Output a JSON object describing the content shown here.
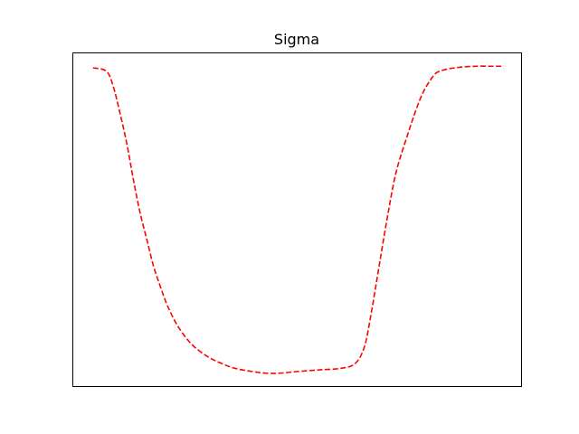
{
  "chart_data": {
    "type": "line",
    "title": "Sigma",
    "xlabel": "",
    "ylabel": "",
    "x_ticks_visible": false,
    "y_ticks_visible": false,
    "grid": false,
    "xlim": [
      0.0,
      1.0
    ],
    "ylim": [
      0.0,
      1.0
    ],
    "series": [
      {
        "color": "#ff0000",
        "line_style": "dashed",
        "x": [
          0.045,
          0.075,
          0.09,
          0.105,
          0.12,
          0.135,
          0.15,
          0.165,
          0.18,
          0.195,
          0.21,
          0.23,
          0.25,
          0.27,
          0.3,
          0.33,
          0.36,
          0.4,
          0.43,
          0.46,
          0.5,
          0.55,
          0.6,
          0.63,
          0.65,
          0.665,
          0.68,
          0.7,
          0.72,
          0.745,
          0.765,
          0.78,
          0.795,
          0.81,
          0.83,
          0.85,
          0.87,
          0.9,
          0.93,
          0.955
        ],
        "y": [
          0.955,
          0.945,
          0.9,
          0.82,
          0.73,
          0.62,
          0.52,
          0.44,
          0.36,
          0.3,
          0.245,
          0.19,
          0.15,
          0.12,
          0.09,
          0.07,
          0.055,
          0.045,
          0.04,
          0.04,
          0.045,
          0.05,
          0.055,
          0.07,
          0.12,
          0.22,
          0.34,
          0.5,
          0.64,
          0.75,
          0.83,
          0.88,
          0.915,
          0.94,
          0.95,
          0.955,
          0.958,
          0.96,
          0.96,
          0.96
        ]
      }
    ]
  }
}
